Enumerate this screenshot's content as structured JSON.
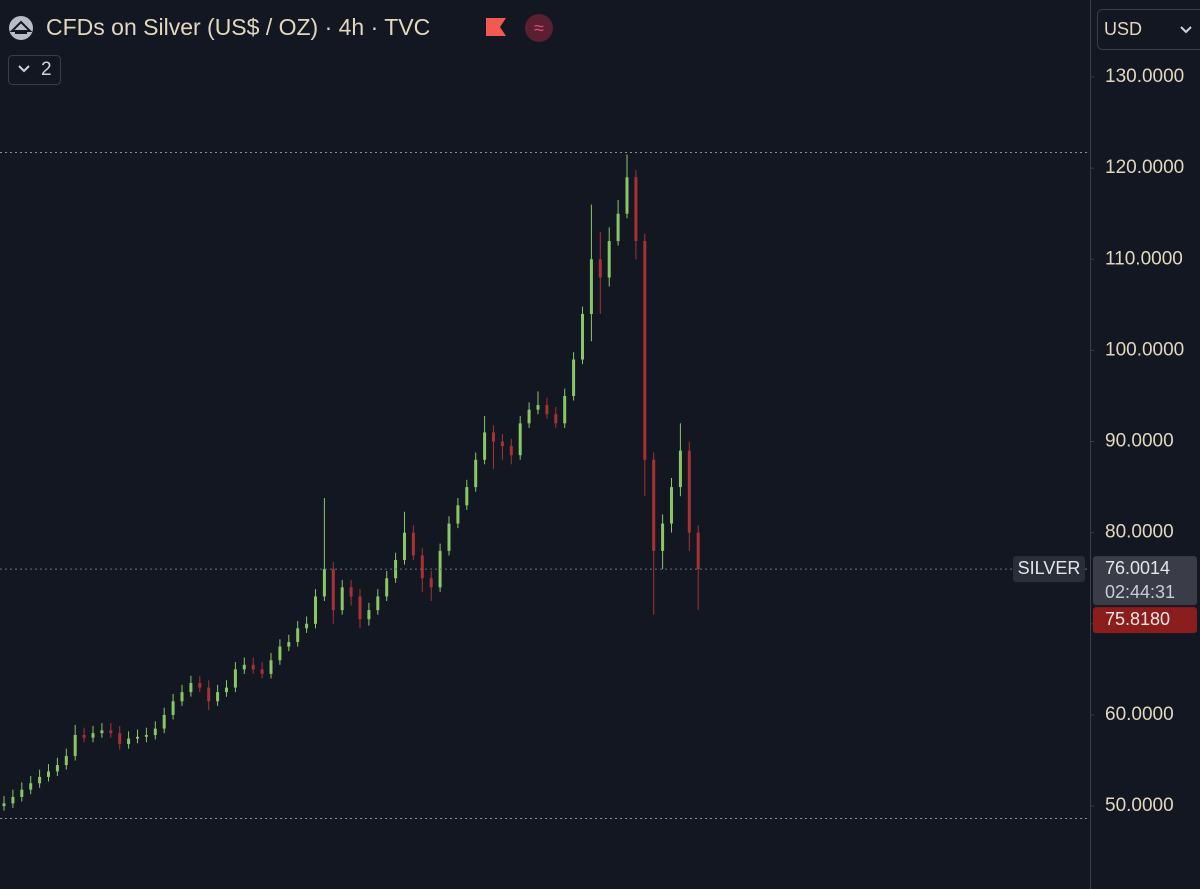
{
  "header": {
    "title": "CFDs on Silver (US$ / OZ) · 4h · TVC",
    "indicators_count": "2",
    "currency": "USD"
  },
  "chart_data": {
    "type": "candlestick",
    "open": [
      50,
      50.3,
      51,
      51.8,
      52.5,
      53.2,
      53.8,
      54.5,
      55.5,
      57.8,
      57.5,
      58,
      58.3,
      58,
      56.8,
      57.4,
      57.6,
      57.8,
      58.5,
      60,
      61.5,
      62.5,
      63.5,
      63,
      61.5,
      62.5,
      63,
      65,
      65.5,
      65,
      64.5,
      66,
      67.5,
      68,
      69.5,
      70,
      73,
      76,
      71.5,
      74,
      73,
      70.5,
      71.5,
      73,
      75,
      77,
      80,
      77.5,
      75,
      74,
      78,
      81,
      83,
      85,
      88,
      91,
      90,
      89.5,
      88.5,
      92,
      93.5,
      94,
      93,
      92,
      95,
      99,
      104,
      110,
      108,
      112,
      115,
      119,
      112,
      88,
      78,
      81,
      85,
      89,
      80
    ],
    "high": [
      51.1,
      51.8,
      52.6,
      53.3,
      54,
      54.6,
      55.3,
      56.3,
      58.9,
      58.6,
      58.8,
      59.1,
      59.1,
      58.8,
      58.2,
      58.4,
      58.6,
      59.3,
      60.8,
      62.3,
      63.3,
      64.3,
      64.3,
      63.8,
      63.3,
      63.8,
      65.8,
      66.3,
      66.3,
      65.8,
      66.8,
      68.3,
      68.8,
      70.3,
      70.8,
      73.8,
      83.8,
      76.8,
      74.8,
      74.8,
      73.8,
      72.3,
      73.8,
      75.8,
      77.8,
      82.3,
      80.8,
      78.3,
      75.8,
      78.8,
      81.8,
      83.8,
      85.8,
      88.8,
      92.8,
      91.8,
      90.8,
      90.3,
      92.8,
      94.3,
      95.5,
      94.8,
      93.8,
      95.8,
      99.8,
      104.8,
      116,
      113,
      113.5,
      116.5,
      121.5,
      119.8,
      112.8,
      88.8,
      82,
      86,
      92,
      90,
      80.8
    ],
    "low": [
      49.5,
      49.8,
      50.5,
      51.3,
      52,
      52.7,
      53.3,
      54,
      55,
      57,
      57,
      57.5,
      57.5,
      56.2,
      56.3,
      56.9,
      57,
      57.3,
      58,
      59.5,
      61,
      62,
      62.5,
      60.5,
      61,
      62,
      62.5,
      64.5,
      64.5,
      64,
      64,
      65.5,
      67,
      67.5,
      69,
      69.5,
      72.5,
      70,
      71,
      72,
      69.5,
      69.8,
      71,
      72.5,
      74.5,
      76.5,
      77,
      73.5,
      72.5,
      73.5,
      77.5,
      80.5,
      82.5,
      84.5,
      87.5,
      87,
      88,
      87.5,
      88,
      91.5,
      93,
      92.5,
      91.5,
      91.5,
      94.5,
      98.5,
      101,
      104,
      107,
      111.5,
      114.5,
      110,
      84,
      71,
      76,
      80,
      84,
      78,
      71.5
    ],
    "close": [
      50.3,
      51,
      51.8,
      52.5,
      53.2,
      53.8,
      54.5,
      55.5,
      57.8,
      57.5,
      58,
      58.3,
      58,
      56.8,
      57.4,
      57.6,
      57.8,
      58.5,
      60,
      61.5,
      62.5,
      63.5,
      63,
      61.5,
      62.5,
      63,
      65,
      65.5,
      65,
      64.5,
      66,
      67.5,
      68,
      69.5,
      70,
      73,
      76,
      71.5,
      74,
      73,
      70.5,
      71.5,
      73,
      75,
      77,
      80,
      77.5,
      75,
      74,
      78,
      81,
      83,
      85,
      88,
      91,
      90,
      89.5,
      88.5,
      92,
      93.5,
      94,
      93,
      92,
      95,
      99,
      104,
      110,
      108,
      112,
      115,
      119,
      112,
      88,
      78,
      81,
      85,
      89,
      80,
      76
    ],
    "up_color": "#89c765",
    "down_color": "#a83232",
    "ylim": [
      40.9,
      138.45
    ],
    "yticks": [
      {
        "value": 50,
        "label": "50.0000"
      },
      {
        "value": 60,
        "label": "60.0000"
      },
      {
        "value": 70,
        "label": ""
      },
      {
        "value": 80,
        "label": "80.0000"
      },
      {
        "value": 90,
        "label": "90.0000"
      },
      {
        "value": 100,
        "label": "100.0000"
      },
      {
        "value": 110,
        "label": "110.0000"
      },
      {
        "value": 120,
        "label": "120.0000"
      },
      {
        "value": 130,
        "label": "130.0000"
      }
    ],
    "high_line": 121.8,
    "low_line": 48.7,
    "symbol_tag": "SILVER",
    "last_price": 76.0014,
    "countdown": "02:44:31",
    "bid_price": {
      "value": 75.818,
      "label": "75.8180"
    }
  }
}
